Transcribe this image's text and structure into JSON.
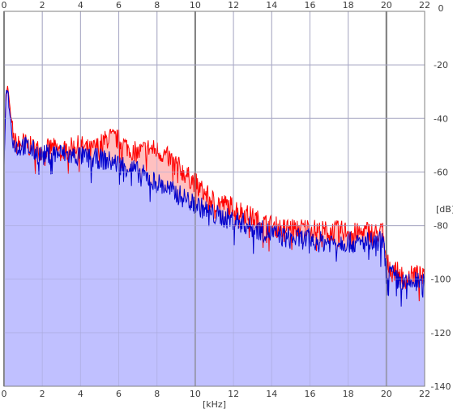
{
  "chart_data": {
    "type": "area",
    "xunit": "[kHz]",
    "yunit": "[dB]",
    "xlim": [
      0,
      22
    ],
    "ylim": [
      -140,
      0
    ],
    "xticks": [
      0,
      2,
      4,
      6,
      8,
      10,
      12,
      14,
      16,
      18,
      20,
      22
    ],
    "yticks": [
      0,
      -20,
      -40,
      -60,
      -80,
      -100,
      -120,
      -140
    ],
    "grid": true,
    "legend": "none",
    "colors": {
      "series_1": "#ff0000",
      "series_1_fill": "#ffc0c0",
      "series_2": "#0000cc",
      "series_2_fill": "#c0c0ff",
      "grid": "#b0b0b0",
      "major_grid": "#808080"
    },
    "series": [
      {
        "x": [
          0,
          0.1,
          0.2,
          0.3,
          0.5,
          0.7,
          1.0,
          1.5,
          2.0,
          2.5,
          3.0,
          3.5,
          4.0,
          4.5,
          5.0,
          5.5,
          6.0,
          6.5,
          7.0,
          7.5,
          8.0,
          8.5,
          9.0,
          9.5,
          10.0,
          10.5,
          11.0,
          11.5,
          12.0,
          12.5,
          13.0,
          13.5,
          14.0,
          14.5,
          15.0,
          15.5,
          16.0,
          16.5,
          17.0,
          17.5,
          18.0,
          18.5,
          19.0,
          19.5,
          19.8,
          20.0,
          20.5,
          21.0,
          21.5,
          22.0
        ],
        "y": [
          -55,
          -32,
          -28,
          -36,
          -48,
          -50,
          -49,
          -51,
          -52,
          -51,
          -52,
          -51,
          -50,
          -52,
          -50,
          -47,
          -48,
          -51,
          -53,
          -51,
          -52,
          -54,
          -57,
          -61,
          -64,
          -68,
          -71,
          -72,
          -73,
          -75,
          -77,
          -79,
          -80,
          -81,
          -81,
          -81,
          -81,
          -82,
          -82,
          -82,
          -82,
          -83,
          -82,
          -83,
          -82,
          -94,
          -97,
          -100,
          -98,
          -100
        ]
      },
      {
        "x": [
          0,
          0.1,
          0.2,
          0.3,
          0.5,
          0.7,
          1.0,
          1.5,
          2.0,
          2.5,
          3.0,
          3.5,
          4.0,
          4.5,
          5.0,
          5.5,
          6.0,
          6.5,
          7.0,
          7.5,
          8.0,
          8.5,
          9.0,
          9.5,
          10.0,
          10.5,
          11.0,
          11.5,
          12.0,
          12.5,
          13.0,
          13.5,
          14.0,
          14.5,
          15.0,
          15.5,
          16.0,
          16.5,
          17.0,
          17.5,
          18.0,
          18.5,
          19.0,
          19.5,
          19.8,
          20.0,
          20.5,
          21.0,
          21.5,
          22.0
        ],
        "y": [
          -57,
          -30,
          -29,
          -38,
          -49,
          -51,
          -50,
          -52,
          -54,
          -53,
          -53,
          -54,
          -54,
          -55,
          -55,
          -56,
          -57,
          -58,
          -60,
          -62,
          -64,
          -66,
          -68,
          -70,
          -72,
          -74,
          -76,
          -77,
          -78,
          -79,
          -81,
          -82,
          -83,
          -84,
          -85,
          -85,
          -85,
          -86,
          -86,
          -86,
          -86,
          -87,
          -86,
          -87,
          -85,
          -96,
          -100,
          -102,
          -101,
          -102
        ]
      }
    ]
  }
}
